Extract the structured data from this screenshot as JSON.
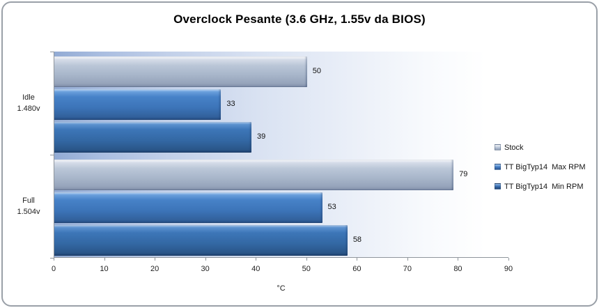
{
  "title": "Overclock Pesante (3.6 GHz, 1.55v da BIOS)",
  "chart_data": {
    "type": "bar",
    "orientation": "horizontal",
    "title": "Overclock Pesante (3.6 GHz, 1.55v da BIOS)",
    "categories": [
      {
        "label": "Idle",
        "sub": "1.480v"
      },
      {
        "label": "Full",
        "sub": "1.504v"
      }
    ],
    "series": [
      {
        "name": "Stock",
        "values": [
          50,
          79
        ],
        "color": "#A7B5CC"
      },
      {
        "name": "TT BigTyp14  Max RPM",
        "values": [
          33,
          53
        ],
        "color": "#3F78BE"
      },
      {
        "name": "TT BigTyp14  Min RPM",
        "values": [
          39,
          58
        ],
        "color": "#3569A5"
      }
    ],
    "xlabel": "°C",
    "xlim": [
      0,
      90
    ],
    "xticks": [
      0,
      10,
      20,
      30,
      40,
      50,
      60,
      70,
      80,
      90
    ],
    "grid": false,
    "legend_position": "right",
    "plot_background": {
      "left": "#92ABD4",
      "right": "#FFFFFF"
    },
    "frame_border_color": "#9AA0A8"
  }
}
